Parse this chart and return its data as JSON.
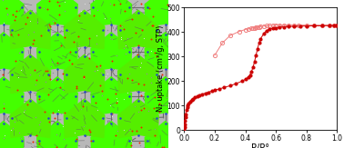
{
  "fig_width": 3.78,
  "fig_height": 1.63,
  "dpi": 100,
  "adsorption_x": [
    0.001,
    0.002,
    0.004,
    0.006,
    0.008,
    0.01,
    0.015,
    0.02,
    0.025,
    0.03,
    0.04,
    0.05,
    0.06,
    0.07,
    0.09,
    0.1,
    0.12,
    0.14,
    0.16,
    0.18,
    0.2,
    0.23,
    0.26,
    0.3,
    0.34,
    0.38,
    0.4,
    0.42,
    0.43,
    0.44,
    0.45,
    0.46,
    0.47,
    0.48,
    0.49,
    0.5,
    0.52,
    0.54,
    0.56,
    0.58,
    0.6,
    0.62,
    0.65,
    0.68,
    0.72,
    0.76,
    0.8,
    0.85,
    0.9,
    0.95,
    0.98,
    1.0
  ],
  "adsorption_y": [
    5,
    12,
    25,
    38,
    52,
    65,
    83,
    95,
    103,
    110,
    118,
    124,
    129,
    133,
    139,
    142,
    147,
    151,
    155,
    159,
    163,
    168,
    174,
    181,
    190,
    200,
    207,
    216,
    225,
    238,
    255,
    278,
    305,
    332,
    355,
    372,
    393,
    406,
    412,
    415,
    417,
    419,
    421,
    422,
    423,
    424,
    424,
    425,
    425,
    426,
    427,
    428
  ],
  "desorption_x": [
    1.0,
    0.98,
    0.95,
    0.9,
    0.85,
    0.8,
    0.75,
    0.72,
    0.68,
    0.65,
    0.62,
    0.6,
    0.58,
    0.56,
    0.54,
    0.52,
    0.5,
    0.49,
    0.48,
    0.47,
    0.46,
    0.45,
    0.44,
    0.42,
    0.4,
    0.36,
    0.3,
    0.25,
    0.2
  ],
  "desorption_y": [
    428,
    428,
    428,
    428,
    428,
    428,
    428,
    428,
    428,
    428,
    428,
    428,
    427,
    426,
    425,
    424,
    422,
    421,
    420,
    418,
    417,
    416,
    415,
    413,
    410,
    402,
    385,
    355,
    305
  ],
  "adsorption_color": "#cc0000",
  "desorption_color": "#f08080",
  "ylabel": "N₂ uptake (cm³/g, STP)",
  "xlabel": "P/P°",
  "ylim": [
    0,
    500
  ],
  "xlim": [
    0.0,
    1.0
  ],
  "yticks": [
    0,
    100,
    200,
    300,
    400,
    500
  ],
  "xticks": [
    0.0,
    0.2,
    0.4,
    0.6,
    0.8,
    1.0
  ],
  "marker_size": 3.0,
  "line_width": 0.7,
  "bg_color": "#b8b8b8",
  "green_cage": "#44ff00",
  "green_cage2": "#66ee00",
  "bond_color": "#707070",
  "red_atom": "#ee2200",
  "blue_atom": "#2244cc",
  "gray_atom": "#888888"
}
